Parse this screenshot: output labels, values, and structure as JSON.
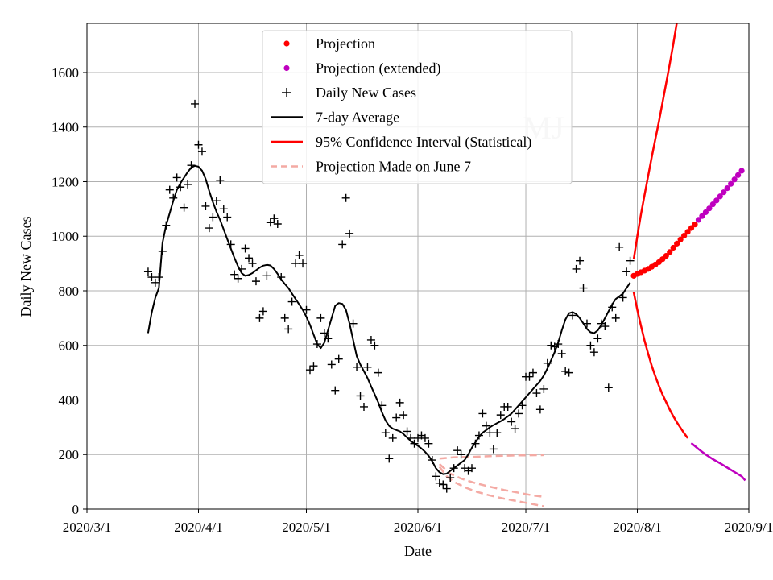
{
  "chart_data": {
    "type": "line",
    "xlabel": "Date",
    "ylabel": "Daily New Cases",
    "watermark": "MJ",
    "ylim": [
      0,
      1780
    ],
    "xlim_day": [
      0,
      184
    ],
    "grid": true,
    "legend_position": "top-center",
    "x_ticks": [
      {
        "label": "2020/3/1",
        "day": 0
      },
      {
        "label": "2020/4/1",
        "day": 31
      },
      {
        "label": "2020/5/1",
        "day": 61
      },
      {
        "label": "2020/6/1",
        "day": 92
      },
      {
        "label": "2020/7/1",
        "day": 122
      },
      {
        "label": "2020/8/1",
        "day": 153
      },
      {
        "label": "2020/9/1",
        "day": 184
      }
    ],
    "y_ticks": [
      0,
      200,
      400,
      600,
      800,
      1000,
      1200,
      1400,
      1600
    ],
    "legend": [
      {
        "label": "Projection",
        "color": "#ff0000",
        "kind": "dot"
      },
      {
        "label": "Projection (extended)",
        "color": "#bf00bf",
        "kind": "dot"
      },
      {
        "label": "Daily New Cases",
        "color": "#000000",
        "kind": "plus"
      },
      {
        "label": "7-day Average",
        "color": "#000000",
        "kind": "line"
      },
      {
        "label": "95% Confidence Interval (Statistical)",
        "color": "#ff0000",
        "kind": "line"
      },
      {
        "label": "Projection Made on June 7",
        "color": "#f4aaa4",
        "kind": "dashed"
      }
    ],
    "daily_new_cases": [
      [
        17,
        870
      ],
      [
        18,
        850
      ],
      [
        19,
        830
      ],
      [
        20,
        850
      ],
      [
        21,
        945
      ],
      [
        22,
        1040
      ],
      [
        23,
        1170
      ],
      [
        24,
        1140
      ],
      [
        25,
        1215
      ],
      [
        26,
        1180
      ],
      [
        27,
        1105
      ],
      [
        28,
        1190
      ],
      [
        29,
        1260
      ],
      [
        30,
        1485
      ],
      [
        31,
        1335
      ],
      [
        32,
        1310
      ],
      [
        33,
        1110
      ],
      [
        34,
        1030
      ],
      [
        35,
        1070
      ],
      [
        36,
        1130
      ],
      [
        37,
        1205
      ],
      [
        38,
        1100
      ],
      [
        39,
        1070
      ],
      [
        40,
        970
      ],
      [
        41,
        860
      ],
      [
        42,
        845
      ],
      [
        43,
        880
      ],
      [
        44,
        955
      ],
      [
        45,
        920
      ],
      [
        46,
        900
      ],
      [
        47,
        835
      ],
      [
        48,
        700
      ],
      [
        49,
        725
      ],
      [
        50,
        855
      ],
      [
        51,
        1050
      ],
      [
        52,
        1065
      ],
      [
        53,
        1045
      ],
      [
        54,
        850
      ],
      [
        55,
        700
      ],
      [
        56,
        660
      ],
      [
        57,
        760
      ],
      [
        58,
        900
      ],
      [
        59,
        930
      ],
      [
        60,
        900
      ],
      [
        61,
        730
      ],
      [
        62,
        510
      ],
      [
        63,
        525
      ],
      [
        64,
        605
      ],
      [
        65,
        700
      ],
      [
        66,
        645
      ],
      [
        67,
        625
      ],
      [
        68,
        530
      ],
      [
        69,
        435
      ],
      [
        70,
        550
      ],
      [
        71,
        970
      ],
      [
        72,
        1140
      ],
      [
        73,
        1010
      ],
      [
        74,
        680
      ],
      [
        75,
        520
      ],
      [
        76,
        415
      ],
      [
        77,
        375
      ],
      [
        78,
        520
      ],
      [
        79,
        620
      ],
      [
        80,
        600
      ],
      [
        81,
        500
      ],
      [
        82,
        380
      ],
      [
        83,
        280
      ],
      [
        84,
        185
      ],
      [
        85,
        260
      ],
      [
        86,
        335
      ],
      [
        87,
        390
      ],
      [
        88,
        345
      ],
      [
        89,
        285
      ],
      [
        90,
        260
      ],
      [
        91,
        240
      ],
      [
        92,
        260
      ],
      [
        93,
        270
      ],
      [
        94,
        260
      ],
      [
        95,
        240
      ],
      [
        96,
        180
      ],
      [
        97,
        120
      ],
      [
        98,
        95
      ],
      [
        99,
        90
      ],
      [
        100,
        75
      ],
      [
        101,
        115
      ],
      [
        102,
        150
      ],
      [
        103,
        215
      ],
      [
        104,
        200
      ],
      [
        105,
        150
      ],
      [
        106,
        140
      ],
      [
        107,
        150
      ],
      [
        108,
        240
      ],
      [
        109,
        270
      ],
      [
        110,
        350
      ],
      [
        111,
        305
      ],
      [
        112,
        280
      ],
      [
        113,
        220
      ],
      [
        114,
        280
      ],
      [
        115,
        345
      ],
      [
        116,
        375
      ],
      [
        117,
        375
      ],
      [
        118,
        320
      ],
      [
        119,
        295
      ],
      [
        120,
        350
      ],
      [
        121,
        380
      ],
      [
        122,
        485
      ],
      [
        123,
        485
      ],
      [
        124,
        500
      ],
      [
        125,
        425
      ],
      [
        126,
        365
      ],
      [
        127,
        440
      ],
      [
        128,
        535
      ],
      [
        129,
        600
      ],
      [
        130,
        595
      ],
      [
        131,
        605
      ],
      [
        132,
        570
      ],
      [
        133,
        505
      ],
      [
        134,
        500
      ],
      [
        135,
        710
      ],
      [
        136,
        880
      ],
      [
        137,
        910
      ],
      [
        138,
        810
      ],
      [
        139,
        680
      ],
      [
        140,
        600
      ],
      [
        141,
        575
      ],
      [
        142,
        625
      ],
      [
        143,
        680
      ],
      [
        144,
        670
      ],
      [
        145,
        445
      ],
      [
        146,
        740
      ],
      [
        147,
        700
      ],
      [
        148,
        960
      ],
      [
        149,
        775
      ],
      [
        150,
        870
      ],
      [
        151,
        910
      ]
    ],
    "seven_day_average": [
      [
        17,
        645
      ],
      [
        18,
        720
      ],
      [
        19,
        775
      ],
      [
        20,
        810
      ],
      [
        21,
        975
      ],
      [
        22,
        1040
      ],
      [
        23,
        1085
      ],
      [
        24,
        1130
      ],
      [
        25,
        1170
      ],
      [
        26,
        1195
      ],
      [
        27,
        1215
      ],
      [
        28,
        1235
      ],
      [
        29,
        1252
      ],
      [
        30,
        1258
      ],
      [
        31,
        1255
      ],
      [
        32,
        1240
      ],
      [
        33,
        1210
      ],
      [
        34,
        1165
      ],
      [
        35,
        1125
      ],
      [
        36,
        1090
      ],
      [
        37,
        1060
      ],
      [
        38,
        1025
      ],
      [
        39,
        990
      ],
      [
        40,
        955
      ],
      [
        41,
        920
      ],
      [
        42,
        890
      ],
      [
        43,
        865
      ],
      [
        44,
        855
      ],
      [
        45,
        858
      ],
      [
        46,
        865
      ],
      [
        47,
        875
      ],
      [
        48,
        885
      ],
      [
        49,
        892
      ],
      [
        50,
        895
      ],
      [
        51,
        893
      ],
      [
        52,
        880
      ],
      [
        53,
        862
      ],
      [
        54,
        842
      ],
      [
        55,
        825
      ],
      [
        56,
        810
      ],
      [
        57,
        790
      ],
      [
        58,
        770
      ],
      [
        59,
        750
      ],
      [
        60,
        730
      ],
      [
        61,
        705
      ],
      [
        62,
        675
      ],
      [
        63,
        640
      ],
      [
        64,
        605
      ],
      [
        65,
        590
      ],
      [
        66,
        610
      ],
      [
        67,
        655
      ],
      [
        68,
        700
      ],
      [
        69,
        745
      ],
      [
        70,
        755
      ],
      [
        71,
        752
      ],
      [
        72,
        730
      ],
      [
        73,
        680
      ],
      [
        74,
        620
      ],
      [
        75,
        560
      ],
      [
        76,
        530
      ],
      [
        77,
        505
      ],
      [
        78,
        480
      ],
      [
        79,
        450
      ],
      [
        80,
        420
      ],
      [
        81,
        390
      ],
      [
        82,
        355
      ],
      [
        83,
        325
      ],
      [
        84,
        305
      ],
      [
        85,
        295
      ],
      [
        86,
        290
      ],
      [
        87,
        285
      ],
      [
        88,
        275
      ],
      [
        89,
        262
      ],
      [
        90,
        250
      ],
      [
        91,
        240
      ],
      [
        92,
        232
      ],
      [
        93,
        222
      ],
      [
        94,
        210
      ],
      [
        95,
        195
      ],
      [
        96,
        175
      ],
      [
        97,
        150
      ],
      [
        98,
        135
      ],
      [
        99,
        128
      ],
      [
        100,
        130
      ],
      [
        101,
        140
      ],
      [
        102,
        150
      ],
      [
        103,
        160
      ],
      [
        104,
        170
      ],
      [
        105,
        180
      ],
      [
        106,
        200
      ],
      [
        107,
        225
      ],
      [
        108,
        245
      ],
      [
        109,
        265
      ],
      [
        110,
        280
      ],
      [
        111,
        290
      ],
      [
        112,
        300
      ],
      [
        113,
        308
      ],
      [
        114,
        315
      ],
      [
        115,
        322
      ],
      [
        116,
        330
      ],
      [
        117,
        340
      ],
      [
        118,
        350
      ],
      [
        119,
        365
      ],
      [
        120,
        380
      ],
      [
        121,
        395
      ],
      [
        122,
        410
      ],
      [
        123,
        425
      ],
      [
        124,
        440
      ],
      [
        125,
        455
      ],
      [
        126,
        470
      ],
      [
        127,
        490
      ],
      [
        128,
        515
      ],
      [
        129,
        545
      ],
      [
        130,
        575
      ],
      [
        131,
        610
      ],
      [
        132,
        655
      ],
      [
        133,
        695
      ],
      [
        134,
        718
      ],
      [
        135,
        722
      ],
      [
        136,
        715
      ],
      [
        137,
        700
      ],
      [
        138,
        680
      ],
      [
        139,
        660
      ],
      [
        140,
        648
      ],
      [
        141,
        645
      ],
      [
        142,
        655
      ],
      [
        143,
        675
      ],
      [
        144,
        700
      ],
      [
        145,
        725
      ],
      [
        146,
        750
      ],
      [
        147,
        770
      ],
      [
        148,
        780
      ],
      [
        149,
        790
      ],
      [
        150,
        810
      ],
      [
        151,
        830
      ]
    ],
    "projection": [
      [
        152,
        855
      ],
      [
        153,
        862
      ],
      [
        154,
        868
      ],
      [
        155,
        874
      ],
      [
        156,
        880
      ],
      [
        157,
        888
      ],
      [
        158,
        896
      ],
      [
        159,
        905
      ],
      [
        160,
        916
      ],
      [
        161,
        928
      ],
      [
        162,
        942
      ],
      [
        163,
        958
      ],
      [
        164,
        973
      ],
      [
        165,
        988
      ],
      [
        166,
        1002
      ],
      [
        167,
        1016
      ],
      [
        168,
        1030
      ],
      [
        169,
        1043
      ]
    ],
    "projection_extended": [
      [
        170,
        1060
      ],
      [
        171,
        1074
      ],
      [
        172,
        1088
      ],
      [
        173,
        1102
      ],
      [
        174,
        1117
      ],
      [
        175,
        1131
      ],
      [
        176,
        1146
      ],
      [
        177,
        1161
      ],
      [
        178,
        1176
      ],
      [
        179,
        1192
      ],
      [
        180,
        1208
      ],
      [
        181,
        1224
      ],
      [
        182,
        1240
      ]
    ],
    "ci_upper": [
      [
        152,
        915
      ],
      [
        153,
        1000
      ],
      [
        154,
        1080
      ],
      [
        155,
        1150
      ],
      [
        156,
        1220
      ],
      [
        157,
        1290
      ],
      [
        158,
        1355
      ],
      [
        159,
        1420
      ],
      [
        160,
        1490
      ],
      [
        161,
        1560
      ],
      [
        162,
        1630
      ],
      [
        163,
        1705
      ],
      [
        164,
        1785
      ]
    ],
    "ci_lower": [
      [
        152,
        795
      ],
      [
        153,
        730
      ],
      [
        154,
        672
      ],
      [
        155,
        618
      ],
      [
        156,
        570
      ],
      [
        157,
        525
      ],
      [
        158,
        487
      ],
      [
        159,
        452
      ],
      [
        160,
        420
      ],
      [
        161,
        392
      ],
      [
        162,
        365
      ],
      [
        163,
        340
      ],
      [
        164,
        318
      ],
      [
        165,
        298
      ],
      [
        166,
        278
      ],
      [
        167,
        260
      ]
    ],
    "ci_lower_extended": [
      [
        168,
        242
      ],
      [
        170,
        220
      ],
      [
        172,
        200
      ],
      [
        174,
        183
      ],
      [
        176,
        168
      ],
      [
        178,
        152
      ],
      [
        180,
        136
      ],
      [
        182,
        120
      ],
      [
        183,
        105
      ]
    ],
    "june7_upper": [
      [
        98,
        185
      ],
      [
        102,
        190
      ],
      [
        108,
        192
      ],
      [
        114,
        195
      ],
      [
        120,
        197
      ],
      [
        127,
        198
      ]
    ],
    "june7_middle": [
      [
        98,
        165
      ],
      [
        101,
        130
      ],
      [
        104,
        112
      ],
      [
        108,
        95
      ],
      [
        112,
        82
      ],
      [
        116,
        70
      ],
      [
        120,
        60
      ],
      [
        124,
        50
      ],
      [
        127,
        45
      ]
    ],
    "june7_lower": [
      [
        98,
        155
      ],
      [
        100,
        120
      ],
      [
        102,
        100
      ],
      [
        105,
        80
      ],
      [
        108,
        65
      ],
      [
        112,
        50
      ],
      [
        116,
        38
      ],
      [
        120,
        28
      ],
      [
        124,
        18
      ],
      [
        127,
        10
      ]
    ]
  }
}
